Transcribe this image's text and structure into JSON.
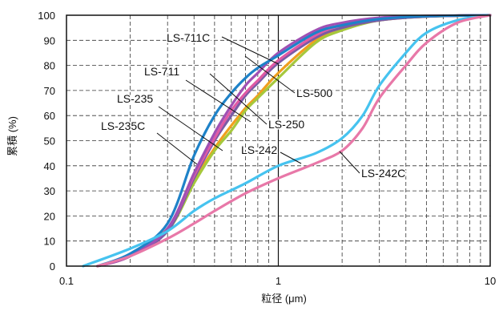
{
  "chart_data": {
    "type": "line",
    "title": "",
    "xlabel": "粒径 (μm)",
    "ylabel": "累積 (%)",
    "x_scale": "log",
    "xlim": [
      0.1,
      10
    ],
    "ylim": [
      0,
      100
    ],
    "x_ticks": [
      {
        "value": 0.1,
        "label": "0.1"
      },
      {
        "value": 1,
        "label": "1"
      },
      {
        "value": 10,
        "label": "10"
      }
    ],
    "y_ticks": [
      0,
      10,
      20,
      30,
      40,
      50,
      60,
      70,
      80,
      90,
      100
    ],
    "grid": true,
    "legend": "callout labels",
    "series": [
      {
        "name": "LS-500",
        "color": "#f0a01e",
        "x": [
          0.14,
          0.2,
          0.3,
          0.4,
          0.5,
          0.6,
          0.7,
          0.8,
          1.0,
          1.5,
          2,
          3,
          5,
          10
        ],
        "y": [
          0,
          4,
          15,
          34,
          47,
          56,
          63,
          68,
          77,
          90,
          95,
          98,
          99.5,
          100
        ]
      },
      {
        "name": "LS-250",
        "color": "#a6c83c",
        "x": [
          0.14,
          0.2,
          0.3,
          0.4,
          0.5,
          0.6,
          0.7,
          0.8,
          1.0,
          1.5,
          2,
          3,
          5,
          10
        ],
        "y": [
          0,
          4,
          14,
          33,
          46,
          54,
          62,
          67,
          75,
          89,
          94,
          98,
          99.5,
          100
        ]
      },
      {
        "name": "LS-711C",
        "color": "#7a5aa5",
        "x": [
          0.14,
          0.2,
          0.3,
          0.4,
          0.5,
          0.6,
          0.7,
          0.8,
          1.0,
          1.5,
          2,
          3,
          5,
          10
        ],
        "y": [
          0,
          4,
          14,
          35,
          50,
          60,
          68,
          73,
          81,
          91,
          95,
          98,
          99.5,
          100
        ]
      },
      {
        "name": "LS-711",
        "color": "#e05aa5",
        "x": [
          0.14,
          0.2,
          0.3,
          0.4,
          0.5,
          0.6,
          0.7,
          0.8,
          1.0,
          1.5,
          2,
          3,
          5,
          10
        ],
        "y": [
          0,
          4,
          15,
          36,
          51,
          62,
          69,
          74,
          82,
          92,
          96,
          98.5,
          99.6,
          100
        ]
      },
      {
        "name": "LS-235",
        "color": "#a050b4",
        "x": [
          0.14,
          0.2,
          0.3,
          0.4,
          0.5,
          0.6,
          0.7,
          0.8,
          1.0,
          1.5,
          2,
          3,
          5,
          10
        ],
        "y": [
          0,
          4,
          15,
          37,
          53,
          64,
          72,
          77,
          85,
          94,
          97,
          99,
          99.7,
          100
        ]
      },
      {
        "name": "LS-235C",
        "color": "#1e82c8",
        "x": [
          0.14,
          0.2,
          0.3,
          0.4,
          0.5,
          0.6,
          0.7,
          0.8,
          1.0,
          1.5,
          2,
          3,
          5,
          10
        ],
        "y": [
          0,
          5,
          17,
          44,
          60,
          69,
          75,
          79,
          84,
          93,
          96,
          98.5,
          99.6,
          100
        ]
      },
      {
        "name": "LS-242",
        "color": "#46c3ef",
        "x": [
          0.12,
          0.2,
          0.3,
          0.4,
          0.5,
          0.7,
          1.0,
          1.5,
          2.0,
          2.5,
          3.0,
          4.0,
          5.0,
          7.0,
          10
        ],
        "y": [
          0,
          7,
          14,
          22,
          27,
          33,
          40,
          45,
          51,
          60,
          72,
          85,
          93,
          98,
          100
        ]
      },
      {
        "name": "LS-242C",
        "color": "#e878a8",
        "x": [
          0.14,
          0.2,
          0.3,
          0.4,
          0.5,
          0.7,
          1.0,
          1.5,
          2.0,
          2.5,
          3.0,
          4.0,
          5.0,
          7.0,
          10
        ],
        "y": [
          0,
          4,
          11,
          17,
          22,
          29,
          35,
          41,
          46,
          55,
          67,
          80,
          89,
          97,
          100
        ]
      }
    ],
    "annotations": [
      {
        "text": "LS-711C"
      },
      {
        "text": "LS-711"
      },
      {
        "text": "LS-235"
      },
      {
        "text": "LS-235C"
      },
      {
        "text": "LS-500"
      },
      {
        "text": "LS-250"
      },
      {
        "text": "LS-242"
      },
      {
        "text": "LS-242C"
      }
    ]
  }
}
